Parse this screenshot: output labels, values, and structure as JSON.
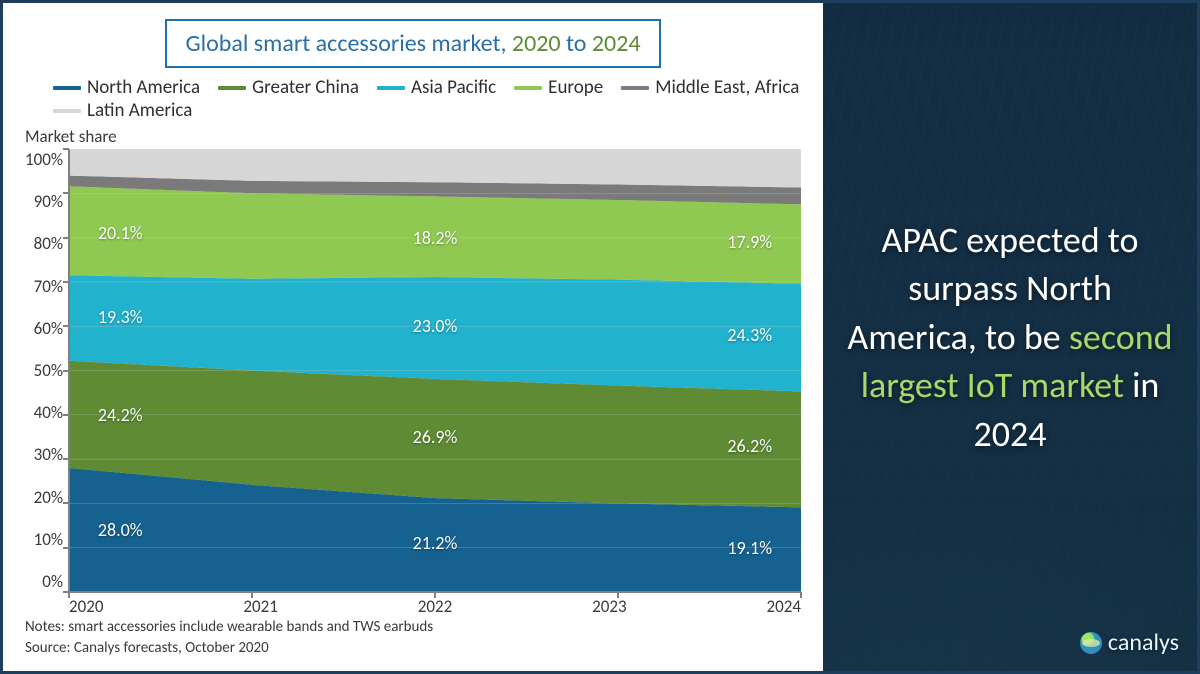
{
  "chart": {
    "type": "stacked-area",
    "title_prefix": "Global smart accessories market, ",
    "title_year1": "2020",
    "title_mid": " to ",
    "title_year2": "2024",
    "title_fontsize": 24,
    "title_text_color": "#2a6fa6",
    "title_year_color": "#5e8b34",
    "title_border_color": "#1f6faa",
    "ylabel": "Market share",
    "ylim": [
      0,
      100
    ],
    "ytick_step": 10,
    "ytick_labels": [
      "0%",
      "10%",
      "20%",
      "30%",
      "40%",
      "50%",
      "60%",
      "70%",
      "80%",
      "90%",
      "100%"
    ],
    "x_categories": [
      "2020",
      "2021",
      "2022",
      "2023",
      "2024"
    ],
    "legend_fontsize": 19,
    "legend_text_color": "#2f2f2f",
    "axis_color": "#808080",
    "grid_color": "#d0d0d0",
    "background_color": "#ffffff",
    "series": [
      {
        "name": "North America",
        "color": "#15618f",
        "values": [
          28.0,
          24.2,
          21.2,
          20.0,
          19.1
        ]
      },
      {
        "name": "Greater China",
        "color": "#5e8b34",
        "values": [
          24.2,
          25.8,
          26.9,
          26.6,
          26.2
        ]
      },
      {
        "name": "Asia Pacific",
        "color": "#21b2ce",
        "values": [
          19.3,
          20.7,
          23.0,
          23.9,
          24.3
        ]
      },
      {
        "name": "Europe",
        "color": "#8fc951",
        "values": [
          20.1,
          19.3,
          18.2,
          18.0,
          17.9
        ]
      },
      {
        "name": "Middle East, Africa",
        "color": "#7a7a7a",
        "values": [
          2.4,
          2.8,
          3.2,
          3.5,
          3.8
        ]
      },
      {
        "name": "Latin America",
        "color": "#d6d6d6",
        "values": [
          6.0,
          7.2,
          7.5,
          8.0,
          8.7
        ]
      }
    ],
    "data_labels": [
      {
        "text": "28.0%",
        "xi": 0,
        "yv": 14
      },
      {
        "text": "24.2%",
        "xi": 0,
        "yv": 40
      },
      {
        "text": "19.3%",
        "xi": 0,
        "yv": 62
      },
      {
        "text": "20.1%",
        "xi": 0,
        "yv": 81
      },
      {
        "text": "21.2%",
        "xi": 2,
        "yv": 11
      },
      {
        "text": "26.9%",
        "xi": 2,
        "yv": 35
      },
      {
        "text": "23.0%",
        "xi": 2,
        "yv": 60
      },
      {
        "text": "18.2%",
        "xi": 2,
        "yv": 80
      },
      {
        "text": "19.1%",
        "xi": 4,
        "yv": 10
      },
      {
        "text": "26.2%",
        "xi": 4,
        "yv": 33
      },
      {
        "text": "24.3%",
        "xi": 4,
        "yv": 58
      },
      {
        "text": "17.9%",
        "xi": 4,
        "yv": 79
      }
    ],
    "data_label_color": "#ffffff",
    "data_label_fontsize": 18
  },
  "notes": {
    "line1": "Notes: smart accessories include wearable bands and TWS earbuds",
    "line2": "Source: Canalys forecasts, October 2020"
  },
  "highlight": {
    "pre": "APAC expected to surpass North America, to be ",
    "mid": "second largest IoT market",
    "post": " in 2024",
    "fontsize": 36,
    "text_color": "#ffffff",
    "mid_color": "#a6d96a",
    "panel_bg": "#173a54"
  },
  "logo": {
    "text": "canalys",
    "fontsize": 24
  }
}
